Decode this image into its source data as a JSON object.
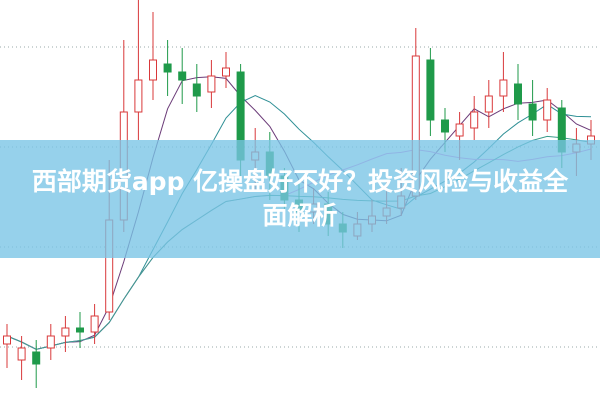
{
  "headline": "西部期货app 亿操盘好不好？投资风险与收益全面解析",
  "chart_data": {
    "type": "candlestick",
    "title": "",
    "grid": "horizontal-dotted",
    "ylim": [
      0,
      100
    ],
    "candles_ohlc_order": "open, close, high, low",
    "candles": [
      [
        14,
        16,
        19,
        8
      ],
      [
        10,
        13,
        16,
        5
      ],
      [
        12,
        9,
        15,
        3
      ],
      [
        13,
        16,
        19,
        10
      ],
      [
        16,
        18,
        21,
        12
      ],
      [
        18,
        17,
        22,
        13
      ],
      [
        17,
        21,
        24,
        14
      ],
      [
        22,
        45,
        60,
        20
      ],
      [
        45,
        72,
        90,
        42
      ],
      [
        72,
        80,
        100,
        65
      ],
      [
        80,
        85,
        97,
        75
      ],
      [
        84,
        82,
        90,
        76
      ],
      [
        82,
        80,
        88,
        74
      ],
      [
        79,
        76,
        84,
        72
      ],
      [
        77,
        81,
        85,
        73
      ],
      [
        81,
        83,
        87,
        78
      ],
      [
        82,
        60,
        84,
        56
      ],
      [
        60,
        62,
        68,
        52
      ],
      [
        62,
        56,
        67,
        50
      ],
      [
        56,
        50,
        58,
        45
      ],
      [
        50,
        47,
        54,
        42
      ],
      [
        47,
        49,
        53,
        44
      ],
      [
        49,
        44,
        52,
        41
      ],
      [
        44,
        42,
        47,
        38
      ],
      [
        41,
        44,
        47,
        40
      ],
      [
        44,
        46,
        50,
        42
      ],
      [
        46,
        48,
        55,
        44
      ],
      [
        48,
        51,
        58,
        46
      ],
      [
        51,
        86,
        93,
        50
      ],
      [
        85,
        70,
        88,
        66
      ],
      [
        70,
        67,
        73,
        62
      ],
      [
        66,
        69,
        72,
        60
      ],
      [
        68,
        72,
        76,
        65
      ],
      [
        72,
        76,
        80,
        68
      ],
      [
        76,
        80,
        87,
        72
      ],
      [
        79,
        74,
        84,
        70
      ],
      [
        74,
        70,
        80,
        66
      ],
      [
        70,
        75,
        78,
        67
      ],
      [
        73,
        62,
        75,
        58
      ],
      [
        62,
        64,
        68,
        56
      ],
      [
        64,
        66,
        70,
        60
      ]
    ],
    "moving_average_periods": [
      5,
      10,
      20,
      30
    ],
    "colors": {
      "up": "#d9383a",
      "down": "#1f9a4a",
      "ma": [
        "#6b3b78",
        "#2e8f95",
        "#e27fe0",
        "#3a9c8c"
      ],
      "banner": "#78c4e6"
    }
  }
}
